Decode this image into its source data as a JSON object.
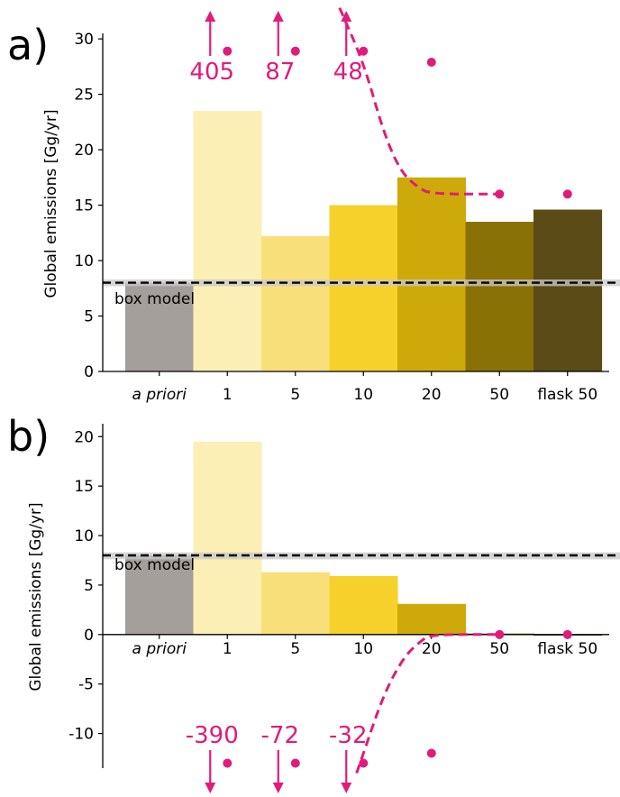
{
  "colors": {
    "apriori": "#a59f9c",
    "bars": [
      "#fbefb6",
      "#f9df7a",
      "#f6d12c",
      "#cea90a",
      "#8a7106",
      "#5b4b16"
    ],
    "magenta": "#e01c7a",
    "band": "#c8c8c8"
  },
  "chart_data": [
    {
      "panel": "a)",
      "type": "bar",
      "ylabel": "Global emissions [Gg/yr]",
      "categories": [
        "a priori",
        "1",
        "5",
        "10",
        "20",
        "50",
        "flask 50"
      ],
      "values": [
        8.0,
        23.5,
        12.2,
        15.0,
        17.5,
        13.5,
        14.6
      ],
      "ylim": [
        0,
        30.5
      ],
      "yticks": [
        0,
        5,
        10,
        15,
        20,
        25,
        30
      ],
      "reference_line": {
        "label": "box model",
        "value": 8.0,
        "band": [
          7.7,
          8.3
        ]
      },
      "offscale_points": [
        {
          "category": "1",
          "value": 405,
          "label": "405"
        },
        {
          "category": "5",
          "value": 87,
          "label": "87"
        },
        {
          "category": "10",
          "value": 48,
          "label": "48"
        }
      ],
      "dots": [
        {
          "category": "1",
          "value": 28.9
        },
        {
          "category": "5",
          "value": 28.9
        },
        {
          "category": "10",
          "value": 28.9
        },
        {
          "category": "20",
          "value": 27.9
        },
        {
          "category": "50",
          "value": 16.0
        },
        {
          "category": "flask 50",
          "value": 16.0
        }
      ],
      "dashed_curve": [
        [
          2.65,
          32.8
        ],
        [
          3.0,
          27.9
        ],
        [
          3.3,
          21.5
        ],
        [
          3.55,
          18.0
        ],
        [
          3.8,
          16.6
        ],
        [
          4.0,
          16.0
        ],
        [
          5.0,
          16.0
        ]
      ]
    },
    {
      "panel": "b)",
      "type": "bar",
      "ylabel": "Global emissions [Gg/yr]",
      "categories": [
        "a priori",
        "1",
        "5",
        "10",
        "20",
        "50",
        "flask 50"
      ],
      "values": [
        8.0,
        19.5,
        6.3,
        5.9,
        3.1,
        0.1,
        -0.1
      ],
      "ylim": [
        -13.5,
        21.3
      ],
      "yticks": [
        -10,
        -5,
        0,
        5,
        10,
        15,
        20
      ],
      "reference_line": {
        "label": "box model",
        "value": 8.0,
        "band": [
          7.6,
          8.3
        ]
      },
      "offscale_points": [
        {
          "category": "1",
          "value": -390,
          "label": "-390"
        },
        {
          "category": "5",
          "value": -72,
          "label": "-72"
        },
        {
          "category": "10",
          "value": -32,
          "label": "-32"
        }
      ],
      "dots": [
        {
          "category": "1",
          "value": -13.0
        },
        {
          "category": "5",
          "value": -13.0
        },
        {
          "category": "10",
          "value": -13.0
        },
        {
          "category": "20",
          "value": -12.0
        },
        {
          "category": "50",
          "value": 0.0
        },
        {
          "category": "flask 50",
          "value": 0.0
        }
      ],
      "dashed_curve": [
        [
          2.9,
          -14.0
        ],
        [
          3.0,
          -12.0
        ],
        [
          3.3,
          -6.0
        ],
        [
          3.6,
          -2.2
        ],
        [
          3.85,
          -0.6
        ],
        [
          4.0,
          0.0
        ],
        [
          5.0,
          0.0
        ]
      ]
    }
  ]
}
